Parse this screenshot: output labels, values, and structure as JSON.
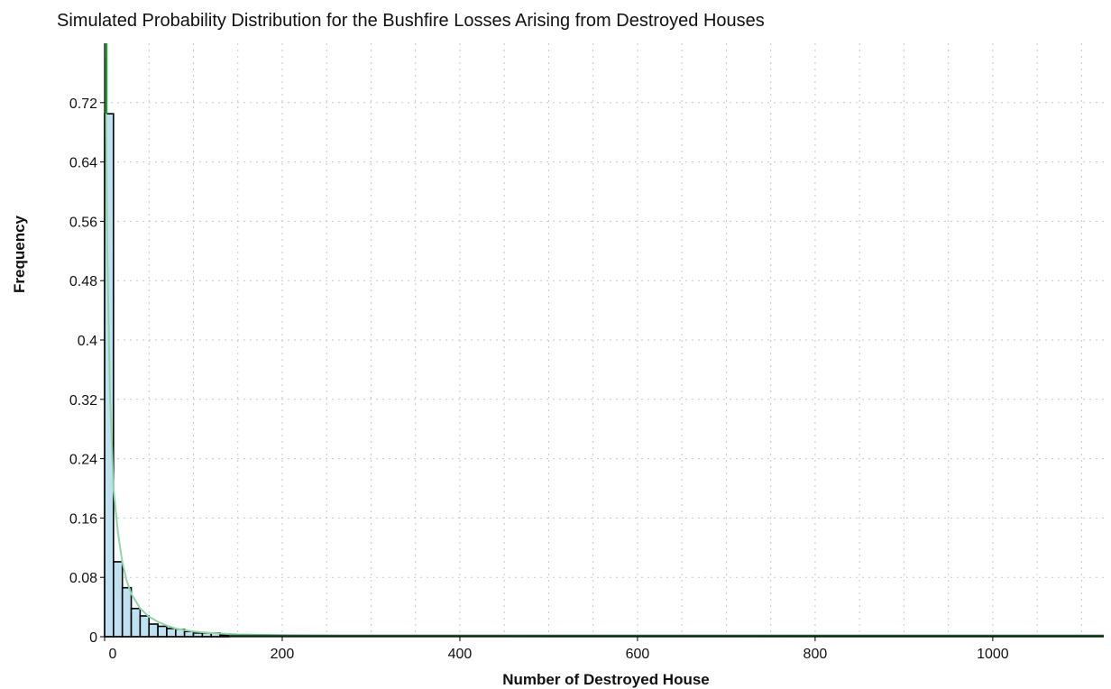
{
  "chart_data": {
    "type": "bar",
    "title": "Simulated Probability Distribution for the Bushfire Losses Arising from Destroyed Houses",
    "xlabel": "Number of Destroyed House",
    "ylabel": "Frequency",
    "xlim": [
      0,
      1125
    ],
    "ylim": [
      0,
      0.8
    ],
    "xticks": [
      0,
      200,
      400,
      600,
      800,
      1000
    ],
    "yticks": [
      0,
      0.08,
      0.16,
      0.24,
      0.32,
      0.4,
      0.48,
      0.56,
      0.64,
      0.72
    ],
    "xtick_labels": [
      "0",
      "200",
      "400",
      "600",
      "800",
      "1000"
    ],
    "ytick_labels": [
      "0",
      "0.08",
      "0.16",
      "0.24",
      "0.32",
      "0.4",
      "0.48",
      "0.56",
      "0.64",
      "0.72"
    ],
    "grid": true,
    "bin_width": 10,
    "bins": [
      {
        "start": 0,
        "value": 0.705
      },
      {
        "start": 10,
        "value": 0.101
      },
      {
        "start": 20,
        "value": 0.066
      },
      {
        "start": 30,
        "value": 0.038
      },
      {
        "start": 40,
        "value": 0.028
      },
      {
        "start": 50,
        "value": 0.017
      },
      {
        "start": 60,
        "value": 0.014
      },
      {
        "start": 70,
        "value": 0.011
      },
      {
        "start": 80,
        "value": 0.01
      },
      {
        "start": 90,
        "value": 0.007
      },
      {
        "start": 100,
        "value": 0.005
      },
      {
        "start": 110,
        "value": 0.005
      },
      {
        "start": 120,
        "value": 0.005
      },
      {
        "start": 130,
        "value": 0.002
      }
    ],
    "fitted_curve": {
      "x": [
        1,
        3,
        6,
        10,
        15,
        20,
        25,
        30,
        40,
        50,
        60,
        70,
        80,
        100,
        120,
        150,
        200,
        300,
        500,
        1125
      ],
      "y": [
        0.78,
        0.52,
        0.33,
        0.2,
        0.14,
        0.1,
        0.075,
        0.058,
        0.038,
        0.027,
        0.02,
        0.015,
        0.011,
        0.007,
        0.005,
        0.003,
        0.002,
        0.001,
        0.0005,
        0.0002
      ]
    },
    "spike": {
      "x": 2,
      "y_from": 0.705,
      "y_to": 0.8
    },
    "colors": {
      "bar_fill": "#bfe2f2",
      "bar_edge": "#000000",
      "curve": "#8fd6a6",
      "spike": "#1f9a3c",
      "tail": "#1a5a2a",
      "grid": "#c8c8c8"
    }
  }
}
